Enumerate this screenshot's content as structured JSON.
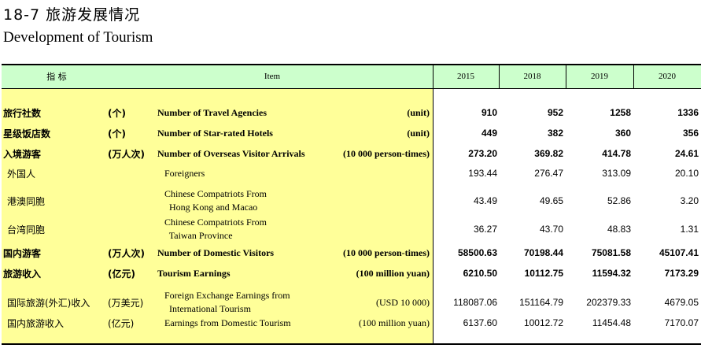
{
  "title": {
    "cn": "18-7  旅游发展情况",
    "en": "Development of Tourism"
  },
  "header": {
    "indicator": "指    标",
    "item": "Item",
    "years": [
      "2015",
      "2018",
      "2019",
      "2020"
    ]
  },
  "rows": [
    {
      "cn": "旅行社数",
      "unit_cn": "(个)",
      "en": [
        "Number of Travel Agencies"
      ],
      "unit_en": "(unit)",
      "values": [
        "910",
        "952",
        "1258",
        "1336"
      ],
      "bold": true
    },
    {
      "cn": "星级饭店数",
      "unit_cn": "(个)",
      "en": [
        "Number of Star-rated Hotels"
      ],
      "unit_en": "(unit)",
      "values": [
        "449",
        "382",
        "360",
        "356"
      ],
      "bold": true
    },
    {
      "cn": "入境游客",
      "unit_cn": "(万人次)",
      "en": [
        "Number of Overseas Visitor Arrivals"
      ],
      "unit_en": "(10 000 person-times)",
      "values": [
        "273.20",
        "369.82",
        "414.78",
        "24.61"
      ],
      "bold": true
    },
    {
      "cn": "外国人",
      "unit_cn": "",
      "en": [
        "Foreigners"
      ],
      "unit_en": "",
      "values": [
        "193.44",
        "276.47",
        "313.09",
        "20.10"
      ],
      "bold": false
    },
    {
      "cn": "港澳同胞",
      "unit_cn": "",
      "en": [
        "Chinese Compatriots From",
        "  Hong Kong and Macao"
      ],
      "unit_en": "",
      "values": [
        "43.49",
        "49.65",
        "52.86",
        "3.20"
      ],
      "bold": false
    },
    {
      "cn": "台湾同胞",
      "unit_cn": "",
      "en": [
        "Chinese Compatriots From",
        "  Taiwan Province"
      ],
      "unit_en": "",
      "values": [
        "36.27",
        "43.70",
        "48.83",
        "1.31"
      ],
      "bold": false
    },
    {
      "cn": "国内游客",
      "unit_cn": "(万人次)",
      "en": [
        "Number of Domestic Visitors"
      ],
      "unit_en": "(10 000 person-times)",
      "values": [
        "58500.63",
        "70198.44",
        "75081.58",
        "45107.41"
      ],
      "bold": true
    },
    {
      "cn": "旅游收入",
      "unit_cn": "(亿元)",
      "en": [
        "Tourism Earnings"
      ],
      "unit_en": "(100 million yuan)",
      "values": [
        "6210.50",
        "10112.75",
        "11594.32",
        "7173.29"
      ],
      "bold": true
    },
    {
      "cn": "国际旅游(外汇)收入",
      "unit_cn": "(万美元)",
      "en": [
        "Foreign Exchange Earnings from",
        "  International Tourism"
      ],
      "unit_en": "(USD 10 000)",
      "values": [
        "118087.06",
        "151164.79",
        "202379.33",
        "4679.05"
      ],
      "bold": false
    },
    {
      "cn": "国内旅游收入",
      "unit_cn": "(亿元)",
      "en": [
        "Earnings from Domestic Tourism"
      ],
      "unit_en": "(100 million yuan)",
      "values": [
        "6137.60",
        "10012.72",
        "11454.48",
        "7170.07"
      ],
      "bold": false
    }
  ]
}
